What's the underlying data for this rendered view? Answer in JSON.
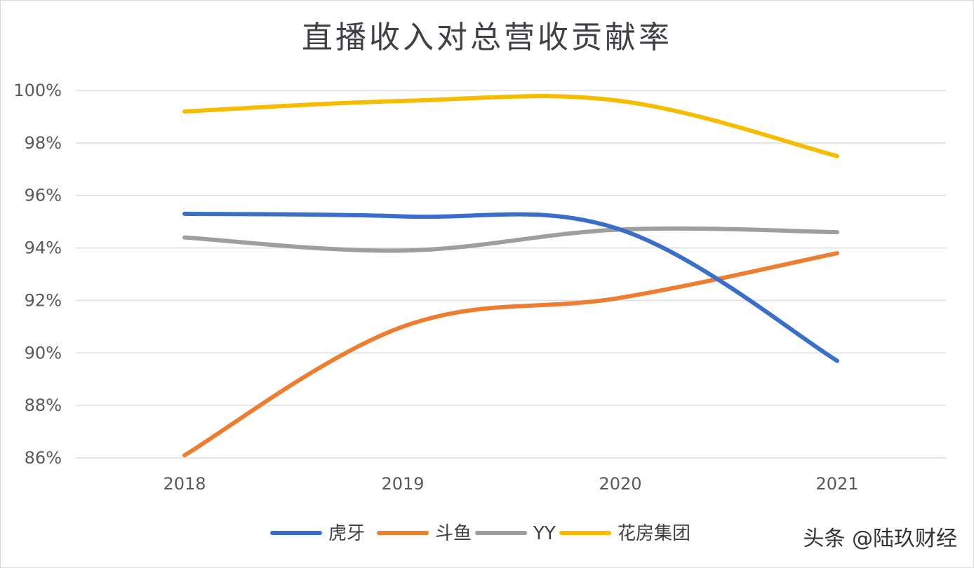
{
  "watermark": "头条 @陆玖财经",
  "chart_data": {
    "type": "line",
    "title": "直播收入对总营收贡献率",
    "xlabel": "",
    "ylabel": "",
    "categories": [
      "2018",
      "2019",
      "2020",
      "2021"
    ],
    "ylim": [
      86,
      100
    ],
    "yticks": [
      86,
      88,
      90,
      92,
      94,
      96,
      98,
      100
    ],
    "ytick_labels": [
      "86%",
      "88%",
      "90%",
      "92%",
      "94%",
      "96%",
      "98%",
      "100%"
    ],
    "grid": true,
    "smooth": true,
    "legend_position": "bottom",
    "series": [
      {
        "name": "虎牙",
        "color": "#3a6fc9",
        "values": [
          95.3,
          95.2,
          94.7,
          89.7
        ]
      },
      {
        "name": "斗鱼",
        "color": "#ed7d31",
        "values": [
          86.1,
          91.0,
          92.1,
          93.8
        ]
      },
      {
        "name": "YY",
        "color": "#9e9e9e",
        "values": [
          94.4,
          93.9,
          94.7,
          94.6
        ]
      },
      {
        "name": "花房集团",
        "color": "#f5bc00",
        "values": [
          99.2,
          99.6,
          99.6,
          97.5
        ]
      }
    ]
  }
}
